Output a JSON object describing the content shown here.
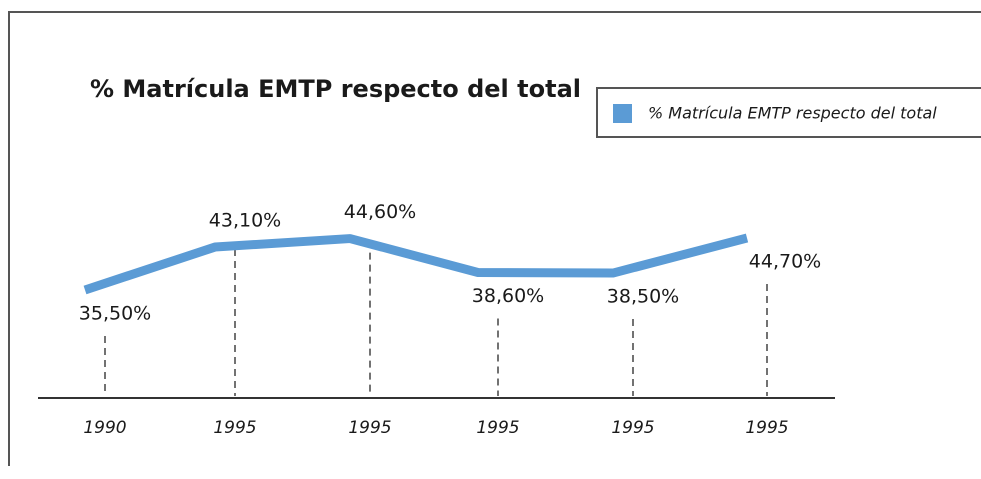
{
  "chart_data": {
    "type": "line",
    "title": "% Matrícula EMTP respecto del total",
    "categories": [
      "1990",
      "1995",
      "1995",
      "1995",
      "1995",
      "1995"
    ],
    "series": [
      {
        "name": "% Matrícula EMTP respecto del total",
        "color": "#5b9bd5",
        "values": [
          35.5,
          43.1,
          44.6,
          38.6,
          38.5,
          44.7
        ],
        "value_labels": [
          "35,50%",
          "43,10%",
          "44,60%",
          "38,60%",
          "38,50%",
          "44,70%"
        ]
      }
    ],
    "legend": "top-right"
  }
}
